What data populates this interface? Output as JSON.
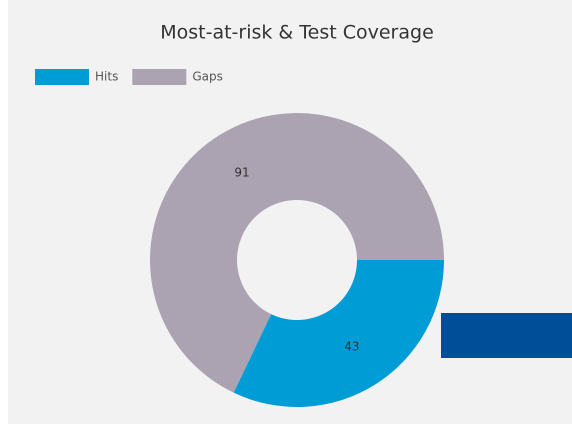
{
  "chart_data": {
    "type": "pie",
    "title": "Most-at-risk & Test Coverage",
    "categories": [
      "Hits",
      "Gaps"
    ],
    "values": [
      43,
      91
    ],
    "colors": [
      "#009cd6",
      "#aba2b2"
    ],
    "legend": "top-left"
  }
}
